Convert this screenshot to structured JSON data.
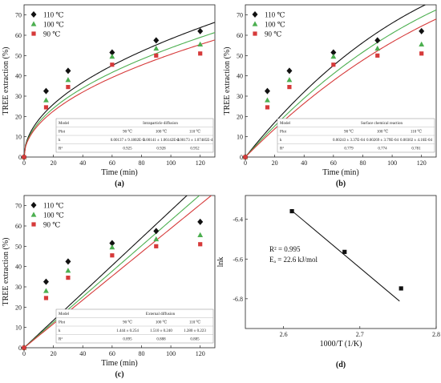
{
  "colors": {
    "110": "#111111",
    "100": "#4caf50",
    "90": "#d63a3a",
    "frame": "#222222"
  },
  "chart_data": [
    {
      "id": "a",
      "panel_label": "(a)",
      "type": "scatter",
      "xlabel": "Time (min)",
      "ylabel": "TREE extraction (%)",
      "xlim": [
        0,
        130
      ],
      "ylim": [
        0,
        75
      ],
      "xticks": [
        0,
        20,
        40,
        60,
        80,
        100,
        120
      ],
      "yticks": [
        0,
        10,
        20,
        30,
        40,
        50,
        60,
        70
      ],
      "legend_position": "top-left",
      "series": [
        {
          "name": "110 ℃",
          "marker": "diamond",
          "color_key": "110",
          "x": [
            0,
            15,
            30,
            60,
            90,
            120
          ],
          "y": [
            0,
            32.5,
            42.5,
            51.5,
            57.5,
            62.0
          ]
        },
        {
          "name": "100 ℃",
          "marker": "triangle",
          "color_key": "100",
          "x": [
            0,
            15,
            30,
            60,
            90,
            120
          ],
          "y": [
            0,
            28.0,
            38.0,
            49.5,
            53.5,
            55.5
          ]
        },
        {
          "name": "90 ℃",
          "marker": "square",
          "color_key": "90",
          "x": [
            0,
            15,
            30,
            60,
            90,
            120
          ],
          "y": [
            0,
            24.5,
            34.5,
            45.5,
            50.0,
            51.0
          ]
        }
      ],
      "fits": [
        {
          "color_key": "110",
          "model": "sqrt",
          "k": 5.82
        },
        {
          "color_key": "100",
          "model": "sqrt",
          "k": 5.38
        },
        {
          "color_key": "90",
          "model": "sqrt",
          "k": 5.06
        }
      ],
      "table": {
        "title": "Intraparticle diffusion",
        "header": [
          "Model",
          "Plot",
          "k",
          "R²"
        ],
        "columns": [
          "90 ℃",
          "100 ℃",
          "110 ℃"
        ],
        "k": [
          "0.00137 ± 9.1802E-5",
          "0.00141 ± 1.06142E-4",
          "0.00173 ± 1.07485E-4"
        ],
        "r2": [
          "0.925",
          "0.928",
          "0.952"
        ]
      }
    },
    {
      "id": "b",
      "panel_label": "(b)",
      "type": "scatter",
      "xlabel": "Time (min)",
      "ylabel": "TREE extraction (%)",
      "xlim": [
        0,
        130
      ],
      "ylim": [
        0,
        75
      ],
      "xticks": [
        0,
        20,
        40,
        60,
        80,
        100,
        120
      ],
      "yticks": [
        0,
        10,
        20,
        30,
        40,
        50,
        60,
        70
      ],
      "legend_position": "top-left",
      "series": [
        {
          "name": "110 ℃",
          "marker": "diamond",
          "color_key": "110",
          "x": [
            0,
            15,
            30,
            60,
            90,
            120
          ],
          "y": [
            0,
            32.5,
            42.5,
            51.5,
            57.5,
            62.0
          ]
        },
        {
          "name": "100 ℃",
          "marker": "triangle",
          "color_key": "100",
          "x": [
            0,
            15,
            30,
            60,
            90,
            120
          ],
          "y": [
            0,
            28.0,
            38.0,
            49.5,
            53.5,
            55.5
          ]
        },
        {
          "name": "90 ℃",
          "marker": "square",
          "color_key": "90",
          "x": [
            0,
            15,
            30,
            60,
            90,
            120
          ],
          "y": [
            0,
            24.5,
            34.5,
            45.5,
            50.0,
            51.0
          ]
        }
      ],
      "fits": [
        {
          "color_key": "110",
          "model": "shrinking_core_chem",
          "k": 0.00302
        },
        {
          "color_key": "100",
          "model": "shrinking_core_chem",
          "k": 0.00269
        },
        {
          "color_key": "90",
          "model": "shrinking_core_chem",
          "k": 0.00243
        }
      ],
      "table": {
        "title": "Surface chemical reaction",
        "header": [
          "Model",
          "Plot",
          "k",
          "R²"
        ],
        "columns": [
          "90 ℃",
          "100 ℃",
          "110 ℃"
        ],
        "k": [
          "0.00243 ± 3.37E-04",
          "0.00269 ± 3.79E-04",
          "0.00302 ± 4.16E-04"
        ],
        "r2": [
          "0.779",
          "0.774",
          "0.781"
        ]
      }
    },
    {
      "id": "c",
      "panel_label": "(c)",
      "type": "scatter",
      "xlabel": "Time (min)",
      "ylabel": "TREE extraction (%)",
      "xlim": [
        0,
        130
      ],
      "ylim": [
        0,
        75
      ],
      "xticks": [
        0,
        20,
        40,
        60,
        80,
        100,
        120
      ],
      "yticks": [
        0,
        10,
        20,
        30,
        40,
        50,
        60,
        70
      ],
      "legend_position": "top-left",
      "series": [
        {
          "name": "110 ℃",
          "marker": "diamond",
          "color_key": "110",
          "x": [
            0,
            15,
            30,
            60,
            90,
            120
          ],
          "y": [
            0,
            32.5,
            42.5,
            51.5,
            57.5,
            62.0
          ]
        },
        {
          "name": "100 ℃",
          "marker": "triangle",
          "color_key": "100",
          "x": [
            0,
            15,
            30,
            60,
            90,
            120
          ],
          "y": [
            0,
            28.0,
            38.0,
            49.5,
            53.5,
            55.5
          ]
        },
        {
          "name": "90 ℃",
          "marker": "square",
          "color_key": "90",
          "x": [
            0,
            15,
            30,
            60,
            90,
            120
          ],
          "y": [
            0,
            24.5,
            34.5,
            45.5,
            50.0,
            51.0
          ]
        }
      ],
      "fits": [
        {
          "color_key": "110",
          "model": "linear",
          "k": 0.676
        },
        {
          "color_key": "100",
          "model": "linear",
          "k": 0.628
        },
        {
          "color_key": "90",
          "model": "linear",
          "k": 0.588
        }
      ],
      "table": {
        "title": "External diffusion",
        "header": [
          "Model",
          "Plot",
          "k",
          "R²"
        ],
        "columns": [
          "90 ℃",
          "100 ℃",
          "110 ℃"
        ],
        "k": [
          "1.444 ± 0.254",
          "1.510 ± 0.240",
          "1.280 ± 0.223"
        ],
        "r2": [
          "0.895",
          "0.888",
          "0.885"
        ]
      }
    },
    {
      "id": "d",
      "panel_label": "(d)",
      "type": "scatter",
      "xlabel": "1000/T (1/K)",
      "ylabel": "lnk",
      "xlim": [
        2.55,
        2.8
      ],
      "ylim": [
        -6.95,
        -6.28
      ],
      "xticks": [
        2.6,
        2.7,
        2.8
      ],
      "yticks": [
        -6.8,
        -6.6,
        -6.4
      ],
      "series": [
        {
          "marker": "square",
          "color_key": "frame",
          "x": [
            2.611,
            2.68,
            2.754
          ],
          "y": [
            -6.359,
            -6.564,
            -6.748
          ]
        }
      ],
      "fit_line": {
        "x": [
          2.611,
          2.752
        ],
        "y": [
          -6.357,
          -6.812
        ]
      },
      "annotations": [
        "R² = 0.995",
        "Eₐ = 22.6 kJ/mol"
      ]
    }
  ]
}
